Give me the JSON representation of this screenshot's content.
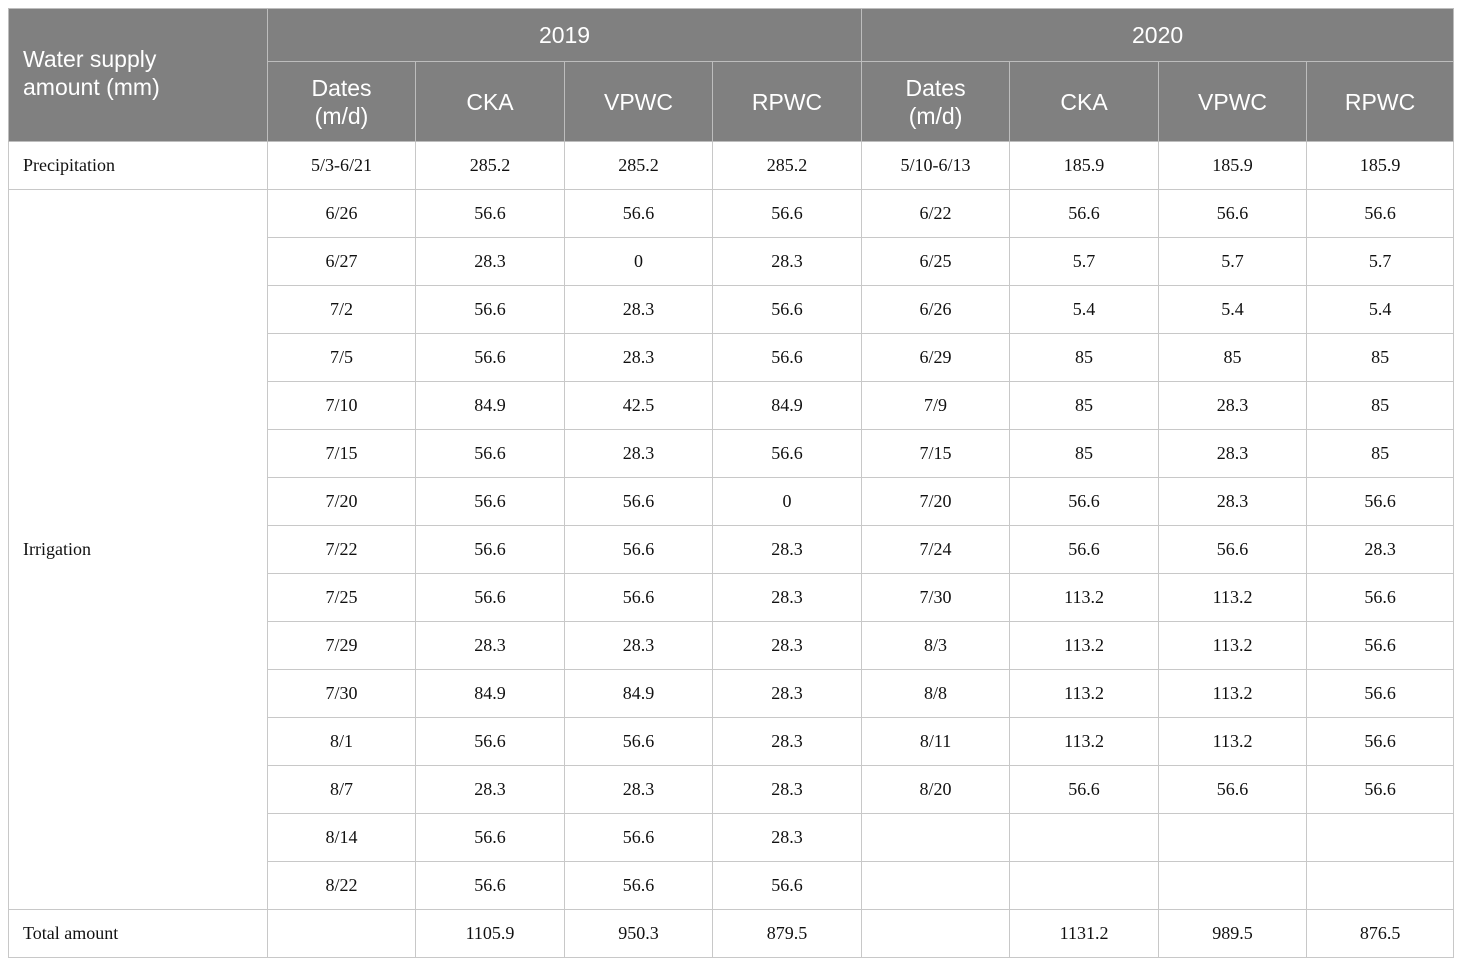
{
  "header": {
    "corner_line1": "Water supply",
    "corner_line2": "amount (mm)",
    "year1": "2019",
    "year2": "2020",
    "sub": {
      "dates_line1": "Dates",
      "dates_line2": "(m/d)",
      "cka": "CKA",
      "vpwc": "VPWC",
      "rpwc": "RPWC"
    }
  },
  "precip": {
    "label": "Precipitation",
    "cells": [
      "5/3-6/21",
      "285.2",
      "285.2",
      "285.2",
      "5/10-6/13",
      "185.9",
      "185.9",
      "185.9"
    ]
  },
  "irrigation": {
    "label": "Irrigation",
    "rows": [
      [
        "6/26",
        "56.6",
        "56.6",
        "56.6",
        "6/22",
        "56.6",
        "56.6",
        "56.6"
      ],
      [
        "6/27",
        "28.3",
        "0",
        "28.3",
        "6/25",
        "5.7",
        "5.7",
        "5.7"
      ],
      [
        "7/2",
        "56.6",
        "28.3",
        "56.6",
        "6/26",
        "5.4",
        "5.4",
        "5.4"
      ],
      [
        "7/5",
        "56.6",
        "28.3",
        "56.6",
        "6/29",
        "85",
        "85",
        "85"
      ],
      [
        "7/10",
        "84.9",
        "42.5",
        "84.9",
        "7/9",
        "85",
        "28.3",
        "85"
      ],
      [
        "7/15",
        "56.6",
        "28.3",
        "56.6",
        "7/15",
        "85",
        "28.3",
        "85"
      ],
      [
        "7/20",
        "56.6",
        "56.6",
        "0",
        "7/20",
        "56.6",
        "28.3",
        "56.6"
      ],
      [
        "7/22",
        "56.6",
        "56.6",
        "28.3",
        "7/24",
        "56.6",
        "56.6",
        "28.3"
      ],
      [
        "7/25",
        "56.6",
        "56.6",
        "28.3",
        "7/30",
        "113.2",
        "113.2",
        "56.6"
      ],
      [
        "7/29",
        "28.3",
        "28.3",
        "28.3",
        "8/3",
        "113.2",
        "113.2",
        "56.6"
      ],
      [
        "7/30",
        "84.9",
        "84.9",
        "28.3",
        "8/8",
        "113.2",
        "113.2",
        "56.6"
      ],
      [
        "8/1",
        "56.6",
        "56.6",
        "28.3",
        "8/11",
        "113.2",
        "113.2",
        "56.6"
      ],
      [
        "8/7",
        "28.3",
        "28.3",
        "28.3",
        "8/20",
        "56.6",
        "56.6",
        "56.6"
      ],
      [
        "8/14",
        "56.6",
        "56.6",
        "28.3",
        "",
        "",
        "",
        ""
      ],
      [
        "8/22",
        "56.6",
        "56.6",
        "56.6",
        "",
        "",
        "",
        ""
      ]
    ]
  },
  "total": {
    "label": "Total amount",
    "cells": [
      "",
      "1105.9",
      "950.3",
      "879.5",
      "",
      "1131.2",
      "989.5",
      "876.5"
    ]
  }
}
